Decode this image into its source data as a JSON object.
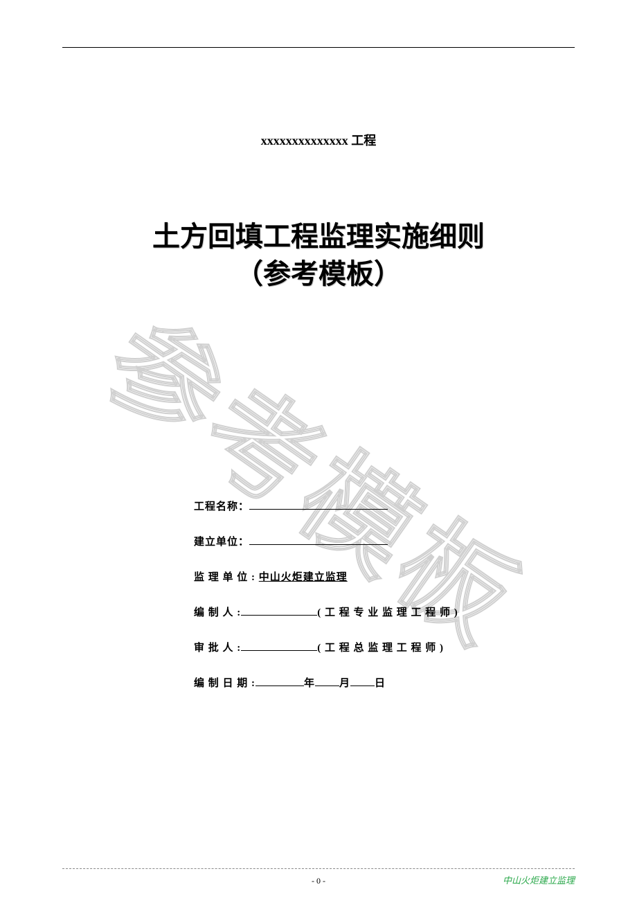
{
  "header": {
    "project_line": "xxxxxxxxxxxxxx 工程"
  },
  "title": {
    "line1": "土方回填工程监理实施细则",
    "line2": "（参考模板）"
  },
  "watermark": {
    "text": "参考模板"
  },
  "form": {
    "project_name_label": "工程名称：",
    "build_unit_label": "建立单位：",
    "supervise_unit_label": "监 理 单 位 :",
    "supervise_unit_value": "中山火炬建立监理",
    "compiler_label": "编 制 人 :",
    "compiler_role": "( 工 程 专 业 监 理 工 程 师 )",
    "approver_label": "审 批 人 :",
    "approver_role": "( 工 程 总 监 理 工 程 师 )",
    "date_label": "编 制 日 期 :",
    "year_char": "年",
    "month_char": "月",
    "day_char": "日"
  },
  "footer": {
    "page_number": "- 0 -",
    "organization": "中山火炬建立监理"
  },
  "colors": {
    "text": "#000000",
    "watermark_stroke": "#d0d0d0",
    "footer_org": "#2aa84a",
    "footer_rule": "#888888",
    "background": "#ffffff"
  },
  "typography": {
    "main_title_fontsize": 40,
    "header_fontsize": 18,
    "form_fontsize": 15,
    "footer_fontsize": 12,
    "watermark_fontsize": 160
  }
}
